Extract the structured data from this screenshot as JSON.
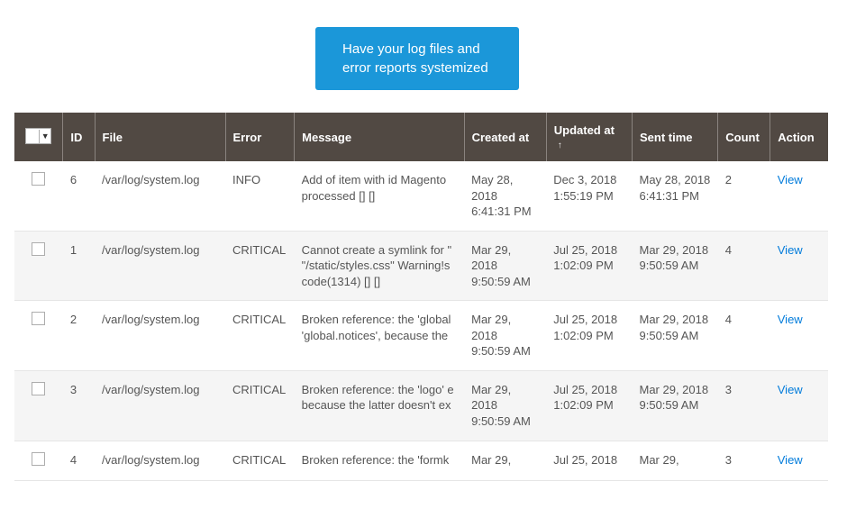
{
  "promo": {
    "text": "Have your log files and error reports systemized"
  },
  "colors": {
    "promo_bg": "#1b97d9",
    "header_bg": "#514943",
    "header_border": "#8a837f",
    "row_alt_bg": "#f5f5f5",
    "link": "#007bdb"
  },
  "table": {
    "headers": {
      "id": "ID",
      "file": "File",
      "error": "Error",
      "message": "Message",
      "created": "Created at",
      "updated": "Updated at",
      "sent": "Sent time",
      "count": "Count",
      "action": "Action"
    },
    "sort_indicator": "↑",
    "action_label": "View",
    "rows": [
      {
        "id": "6",
        "file": "/var/log/system.log",
        "error": "INFO",
        "message": "Add of item with id Magento processed [] []",
        "created": "May 28, 2018 6:41:31 PM",
        "updated": "Dec 3, 2018 1:55:19 PM",
        "sent": "May 28, 2018 6:41:31 PM",
        "count": "2"
      },
      {
        "id": "1",
        "file": "/var/log/system.log",
        "error": "CRITICAL",
        "message": "Cannot create a symlink for \" \"/static/styles.css\" Warning!s code(1314) [] []",
        "created": "Mar 29, 2018 9:50:59 AM",
        "updated": "Jul 25, 2018 1:02:09 PM",
        "sent": "Mar 29, 2018 9:50:59 AM",
        "count": "4"
      },
      {
        "id": "2",
        "file": "/var/log/system.log",
        "error": "CRITICAL",
        "message": "Broken reference: the 'global 'global.notices', because the",
        "created": "Mar 29, 2018 9:50:59 AM",
        "updated": "Jul 25, 2018 1:02:09 PM",
        "sent": "Mar 29, 2018 9:50:59 AM",
        "count": "4"
      },
      {
        "id": "3",
        "file": "/var/log/system.log",
        "error": "CRITICAL",
        "message": "Broken reference: the 'logo' e because the latter doesn't ex",
        "created": "Mar 29, 2018 9:50:59 AM",
        "updated": "Jul 25, 2018 1:02:09 PM",
        "sent": "Mar 29, 2018 9:50:59 AM",
        "count": "3"
      },
      {
        "id": "4",
        "file": "/var/log/system.log",
        "error": "CRITICAL",
        "message": "Broken reference: the 'formk",
        "created": "Mar 29,",
        "updated": "Jul 25, 2018",
        "sent": "Mar 29,",
        "count": "3"
      }
    ]
  }
}
